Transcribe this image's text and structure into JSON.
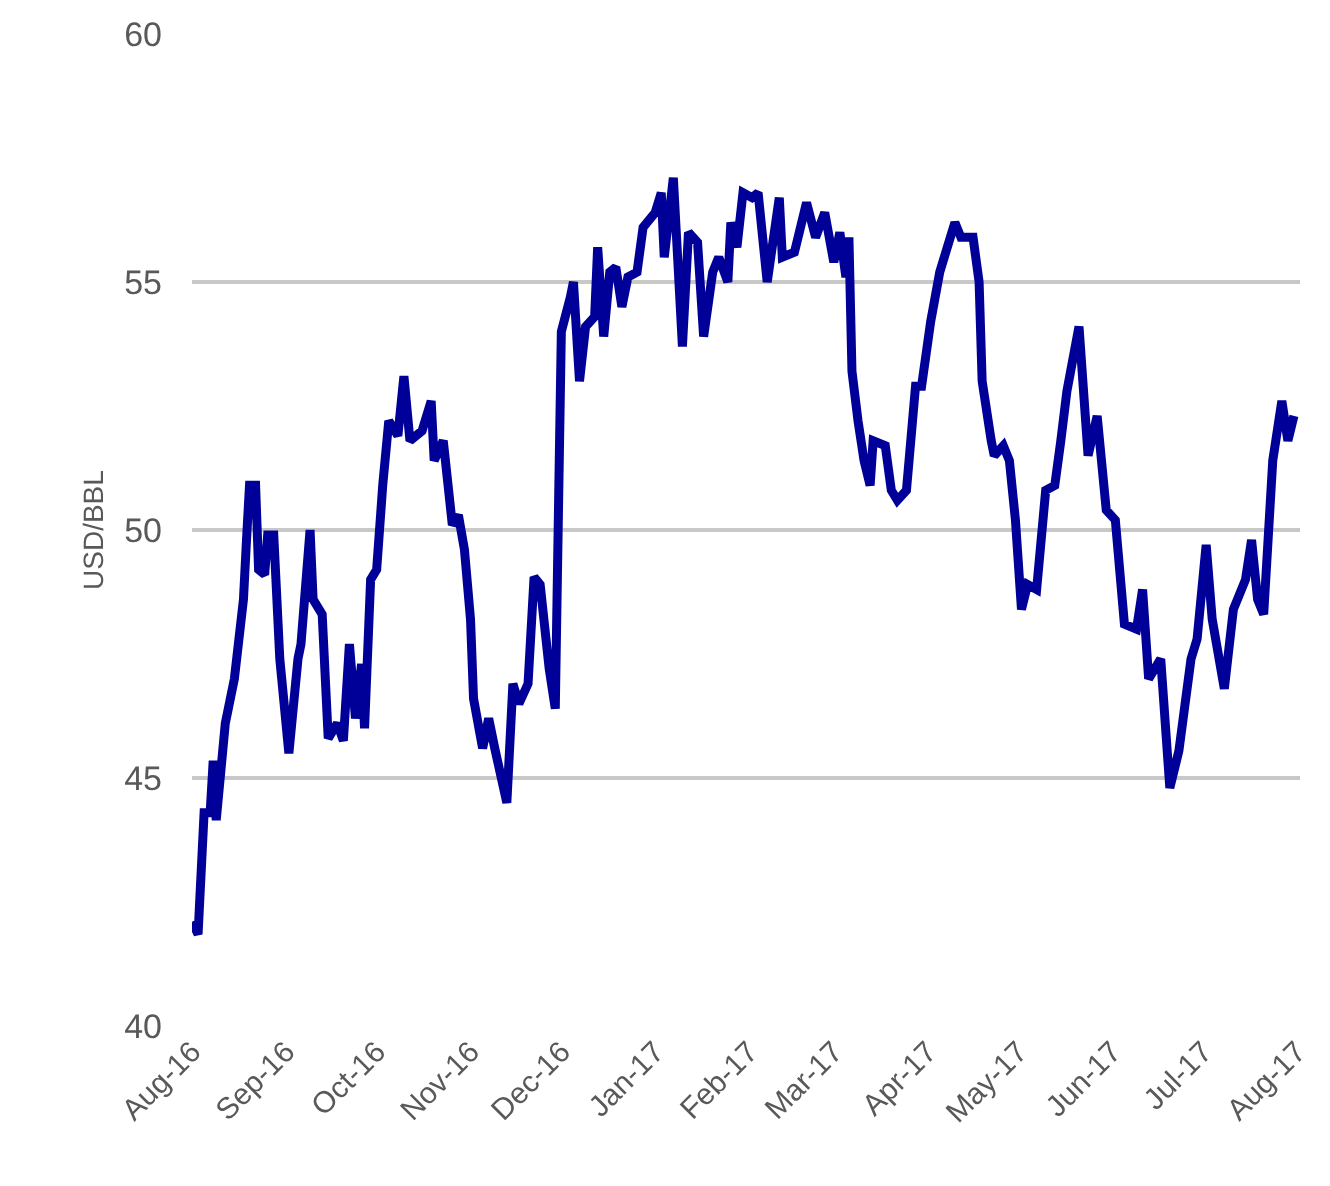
{
  "chart_data": {
    "type": "line",
    "ylabel": "USD/BBL",
    "x": [
      "2016-08-01",
      "2016-08-03",
      "2016-08-05",
      "2016-08-07",
      "2016-08-08",
      "2016-08-09",
      "2016-08-12",
      "2016-08-15",
      "2016-08-18",
      "2016-08-19",
      "2016-08-20",
      "2016-08-22",
      "2016-08-23",
      "2016-08-25",
      "2016-08-26",
      "2016-08-28",
      "2016-08-30",
      "2016-09-02",
      "2016-09-05",
      "2016-09-06",
      "2016-09-09",
      "2016-09-10",
      "2016-09-13",
      "2016-09-15",
      "2016-09-18",
      "2016-09-20",
      "2016-09-22",
      "2016-09-24",
      "2016-09-26",
      "2016-09-27",
      "2016-09-29",
      "2016-10-01",
      "2016-10-03",
      "2016-10-05",
      "2016-10-08",
      "2016-10-10",
      "2016-10-12",
      "2016-10-16",
      "2016-10-19",
      "2016-10-20",
      "2016-10-23",
      "2016-10-26",
      "2016-10-28",
      "2016-10-30",
      "2016-11-01",
      "2016-11-02",
      "2016-11-05",
      "2016-11-07",
      "2016-11-09",
      "2016-11-13",
      "2016-11-15",
      "2016-11-17",
      "2016-11-20",
      "2016-11-22",
      "2016-11-24",
      "2016-11-27",
      "2016-11-29",
      "2016-12-01",
      "2016-12-04",
      "2016-12-05",
      "2016-12-07",
      "2016-12-09",
      "2016-12-12",
      "2016-12-13",
      "2016-12-15",
      "2016-12-17",
      "2016-12-19",
      "2016-12-21",
      "2016-12-23",
      "2016-12-26",
      "2016-12-28",
      "2017-01-01",
      "2017-01-03",
      "2017-01-04",
      "2017-01-07",
      "2017-01-10",
      "2017-01-12",
      "2017-01-15",
      "2017-01-17",
      "2017-01-20",
      "2017-01-22",
      "2017-01-25",
      "2017-01-26",
      "2017-01-28",
      "2017-01-30",
      "2017-02-02",
      "2017-02-04",
      "2017-02-07",
      "2017-02-11",
      "2017-02-12",
      "2017-02-16",
      "2017-02-20",
      "2017-02-23",
      "2017-02-26",
      "2017-03-01",
      "2017-03-03",
      "2017-03-05",
      "2017-03-06",
      "2017-03-07",
      "2017-03-09",
      "2017-03-11",
      "2017-03-13",
      "2017-03-14",
      "2017-03-18",
      "2017-03-20",
      "2017-03-22",
      "2017-03-25",
      "2017-03-28",
      "2017-03-30",
      "2017-04-02",
      "2017-04-05",
      "2017-04-10",
      "2017-04-12",
      "2017-04-16",
      "2017-04-18",
      "2017-04-19",
      "2017-04-22",
      "2017-04-23",
      "2017-04-26",
      "2017-04-28",
      "2017-04-30",
      "2017-05-02",
      "2017-05-04",
      "2017-05-07",
      "2017-05-10",
      "2017-05-13",
      "2017-05-15",
      "2017-05-17",
      "2017-05-21",
      "2017-05-24",
      "2017-05-27",
      "2017-05-30",
      "2017-06-02",
      "2017-06-05",
      "2017-06-09",
      "2017-06-11",
      "2017-06-13",
      "2017-06-17",
      "2017-06-20",
      "2017-06-23",
      "2017-06-27",
      "2017-06-29",
      "2017-07-02",
      "2017-07-04",
      "2017-07-08",
      "2017-07-11",
      "2017-07-15",
      "2017-07-17",
      "2017-07-19",
      "2017-07-21",
      "2017-07-24",
      "2017-07-27",
      "2017-07-29",
      "2017-07-31"
    ],
    "series": [
      {
        "color": "#000099",
        "values": [
          42.1,
          41.85,
          44.3,
          44.3,
          45.35,
          44.15,
          46.1,
          47.0,
          48.6,
          49.8,
          50.9,
          50.9,
          49.2,
          49.1,
          49.9,
          49.9,
          47.4,
          45.5,
          47.4,
          47.7,
          50.0,
          48.6,
          48.3,
          45.8,
          46.1,
          45.75,
          47.7,
          46.2,
          47.3,
          46.0,
          49.0,
          49.2,
          50.9,
          52.2,
          51.9,
          53.1,
          51.8,
          52.0,
          52.6,
          51.4,
          51.8,
          50.1,
          50.3,
          49.6,
          48.2,
          46.6,
          45.6,
          46.2,
          45.6,
          44.5,
          46.9,
          46.5,
          46.9,
          49.05,
          48.9,
          47.2,
          46.4,
          54.0,
          54.7,
          55.0,
          53.0,
          54.1,
          54.3,
          55.7,
          53.9,
          55.2,
          55.3,
          54.5,
          55.1,
          55.2,
          56.1,
          56.4,
          56.8,
          55.5,
          57.1,
          53.7,
          56.0,
          55.8,
          53.9,
          55.2,
          55.5,
          55.0,
          56.2,
          55.7,
          56.8,
          56.7,
          56.8,
          55.0,
          56.7,
          55.5,
          55.6,
          56.6,
          55.9,
          56.4,
          55.4,
          56.0,
          55.1,
          55.9,
          53.2,
          52.2,
          51.4,
          50.9,
          51.8,
          51.7,
          50.8,
          50.6,
          50.8,
          52.9,
          52.9,
          54.2,
          55.2,
          56.2,
          55.9,
          55.9,
          55.0,
          53.0,
          51.8,
          51.5,
          51.7,
          51.4,
          50.2,
          48.4,
          48.9,
          48.8,
          50.8,
          50.9,
          51.8,
          52.8,
          54.1,
          51.5,
          52.3,
          50.4,
          50.2,
          48.1,
          48.0,
          48.8,
          47.0,
          47.4,
          44.8,
          45.55,
          47.4,
          47.8,
          49.7,
          48.2,
          46.8,
          48.4,
          49.0,
          49.8,
          48.6,
          48.3,
          51.4,
          52.6,
          51.8,
          52.3
        ]
      }
    ],
    "xlim": [
      "2016-08-01",
      "2017-08-02"
    ],
    "xticks": [
      {
        "value": "2016-08-01",
        "label": "Aug-16"
      },
      {
        "value": "2016-09-01",
        "label": "Sep-16"
      },
      {
        "value": "2016-10-01",
        "label": "Oct-16"
      },
      {
        "value": "2016-11-01",
        "label": "Nov-16"
      },
      {
        "value": "2016-12-01",
        "label": "Dec-16"
      },
      {
        "value": "2017-01-01",
        "label": "Jan-17"
      },
      {
        "value": "2017-02-01",
        "label": "Feb-17"
      },
      {
        "value": "2017-03-01",
        "label": "Mar-17"
      },
      {
        "value": "2017-04-01",
        "label": "Apr-17"
      },
      {
        "value": "2017-05-01",
        "label": "May-17"
      },
      {
        "value": "2017-06-01",
        "label": "Jun-17"
      },
      {
        "value": "2017-07-01",
        "label": "Jul-17"
      },
      {
        "value": "2017-08-01",
        "label": "Aug-17"
      }
    ],
    "ylim": [
      40,
      60
    ],
    "yticks": [
      40,
      45,
      50,
      55,
      60
    ],
    "grid": "y",
    "marker": "none",
    "line_style": "solid"
  }
}
